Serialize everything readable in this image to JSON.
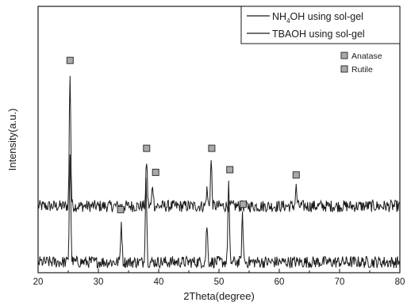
{
  "chart_data": {
    "type": "line",
    "title": "",
    "xlabel": "2Theta(degree)",
    "ylabel": "Intensity(a.u.)",
    "xlim": [
      20,
      80
    ],
    "xticks": [
      20,
      30,
      40,
      50,
      60,
      70,
      80
    ],
    "y_ticks_shown": false,
    "grid": false,
    "legend": {
      "placement": "top-right",
      "entries": [
        {
          "prefix": "NH",
          "sub": "4",
          "suffix": "OH using sol-gel"
        },
        {
          "prefix": "TBAOH using sol-gel",
          "sub": "",
          "suffix": ""
        }
      ]
    },
    "marker_legend": [
      {
        "label": "Anatase",
        "color": "#a9a9a9"
      },
      {
        "label": "Rutile",
        "color": "#a9a9a9"
      }
    ],
    "series": [
      {
        "name": "NH4OH using sol-gel",
        "baseline": 0.25,
        "peaks": [
          {
            "x": 25.3,
            "height": 0.5
          },
          {
            "x": 38.0,
            "height": 0.17
          },
          {
            "x": 39.0,
            "height": 0.08
          },
          {
            "x": 48.0,
            "height": 0.06
          },
          {
            "x": 48.7,
            "height": 0.17
          },
          {
            "x": 62.8,
            "height": 0.07
          }
        ],
        "markers": [
          25.3,
          38.0,
          39.5,
          48.8,
          62.8
        ]
      },
      {
        "name": "TBAOH using sol-gel",
        "baseline": 0.04,
        "peaks": [
          {
            "x": 25.3,
            "height": 0.41
          },
          {
            "x": 33.8,
            "height": 0.15
          },
          {
            "x": 37.9,
            "height": 0.32
          },
          {
            "x": 48.0,
            "height": 0.14
          },
          {
            "x": 51.6,
            "height": 0.3
          },
          {
            "x": 53.9,
            "height": 0.17
          }
        ],
        "markers": [
          33.7,
          51.8,
          54.0
        ]
      }
    ],
    "colors": {
      "line": "#1a1a1a",
      "marker_fill": "#a9a9a9",
      "marker_stroke": "#333333"
    }
  }
}
